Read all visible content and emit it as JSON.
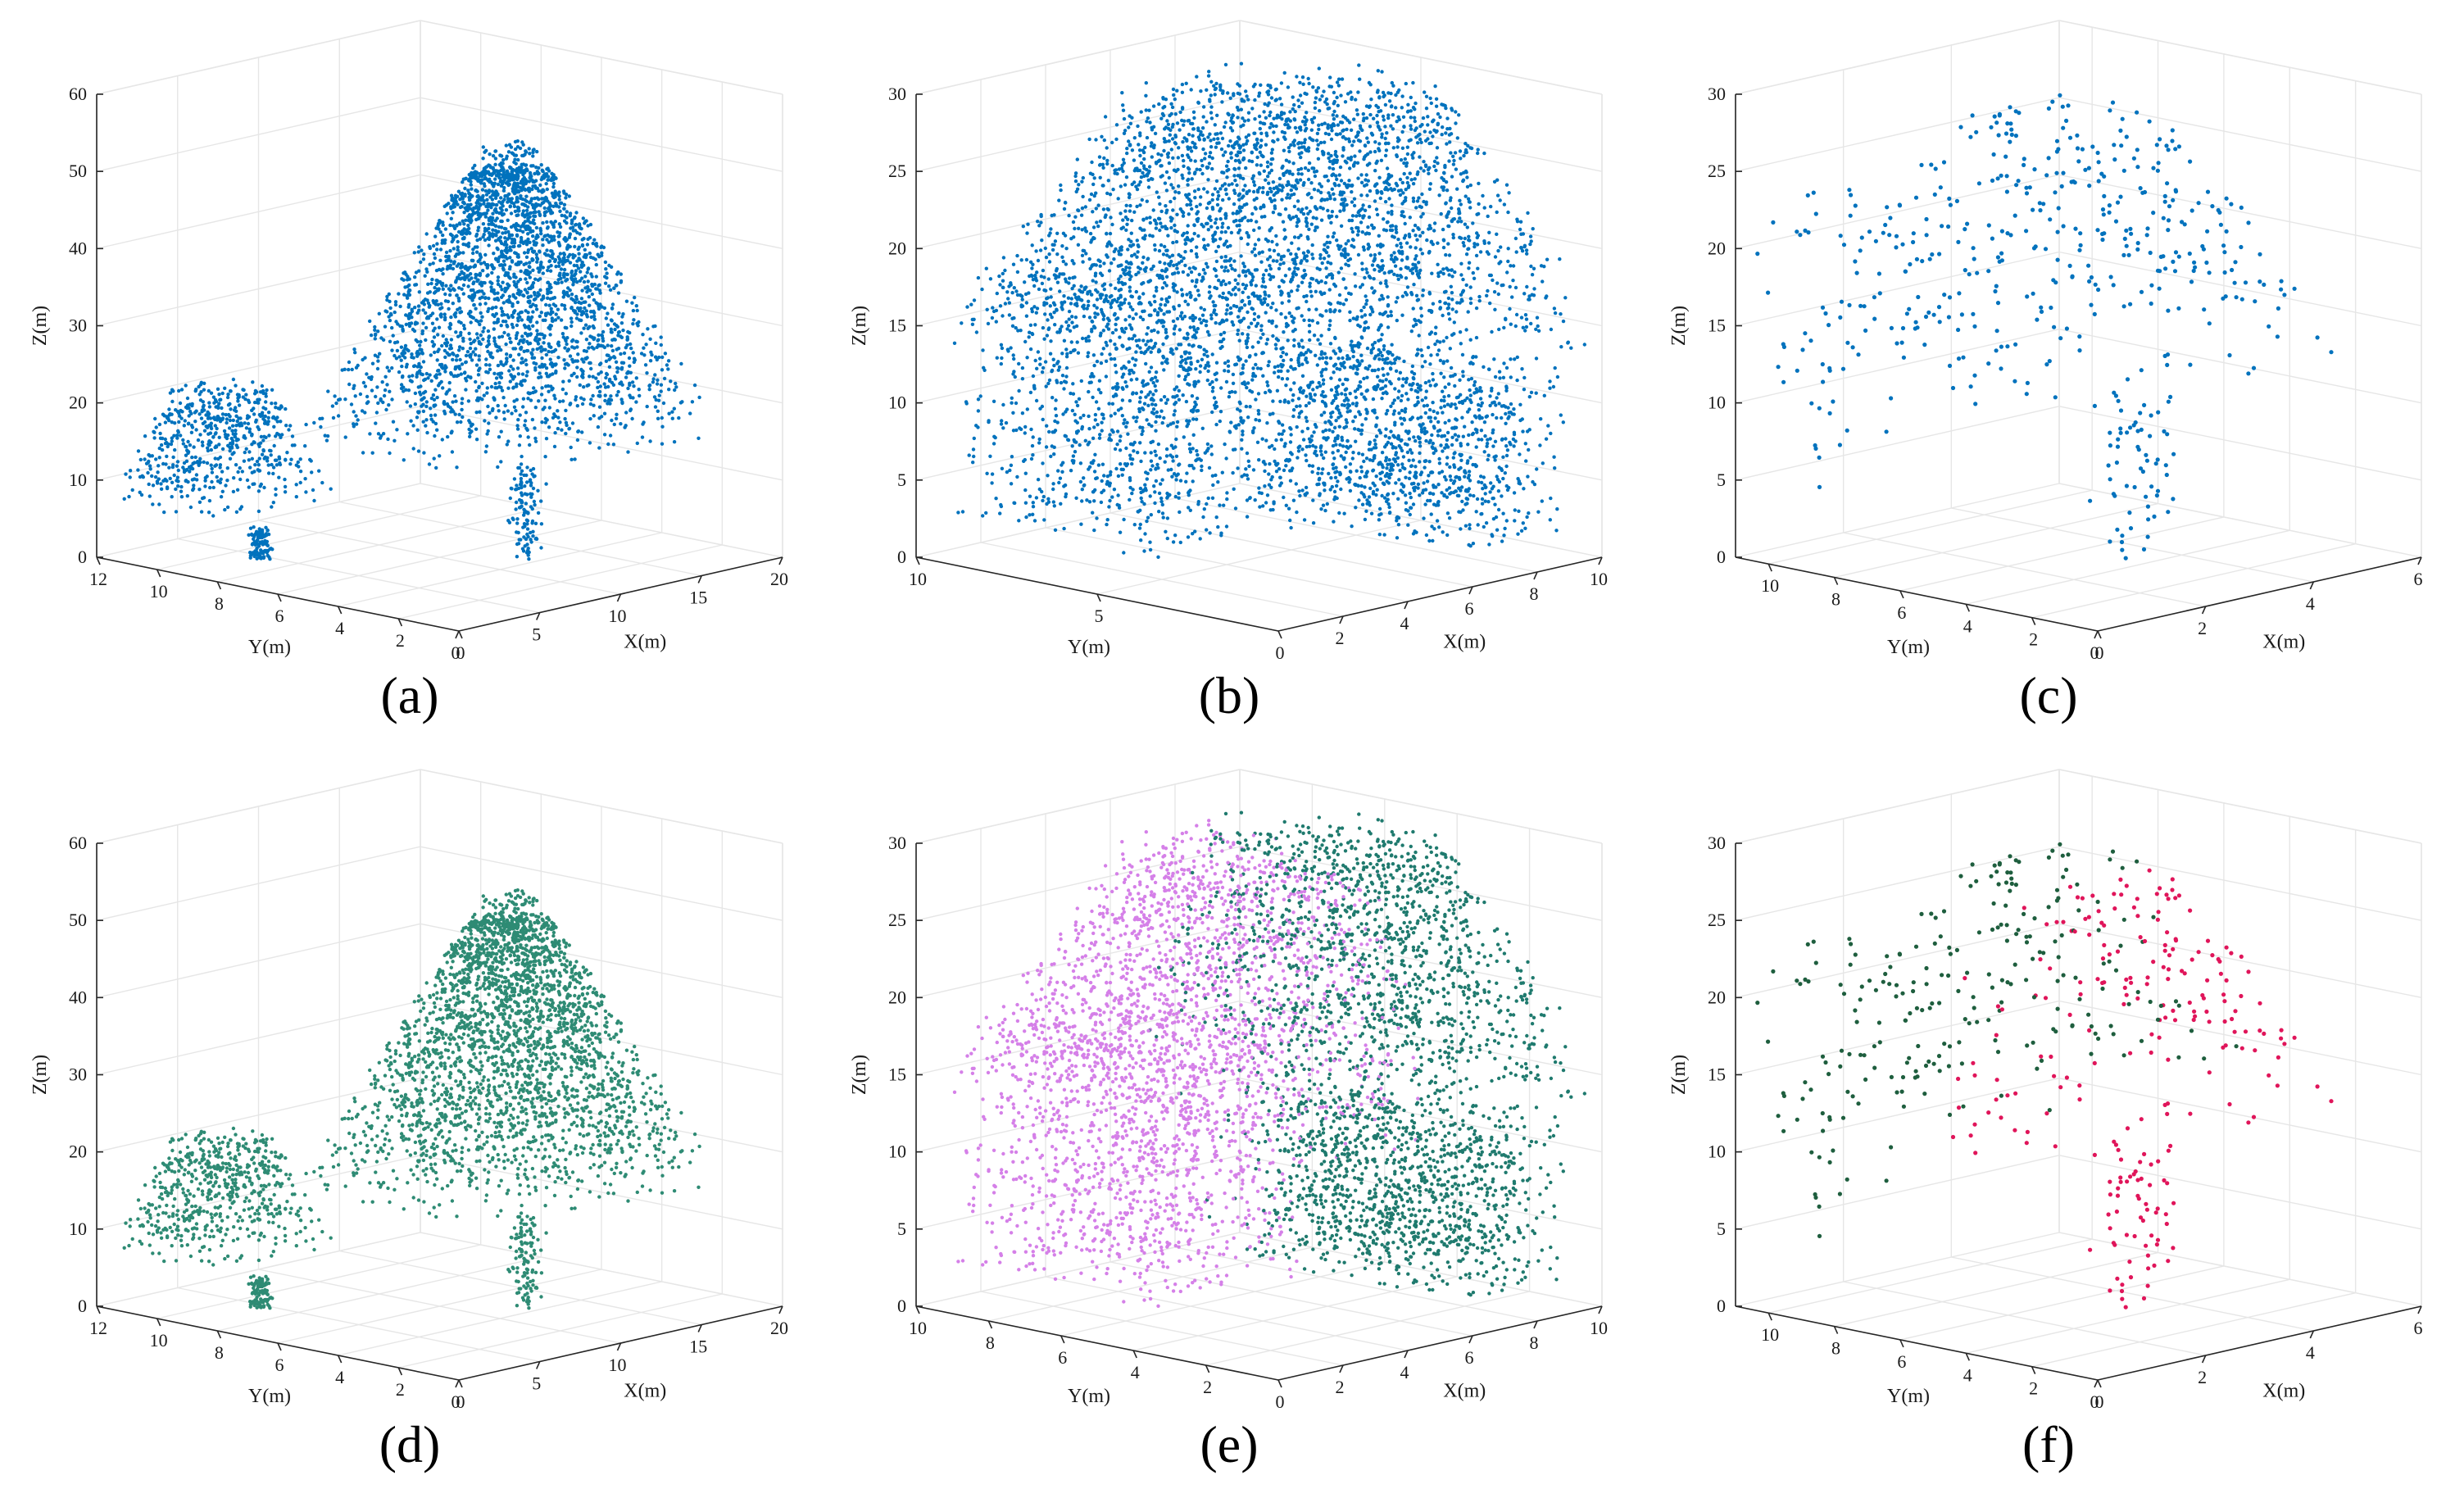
{
  "chart_data": [
    {
      "id": "a",
      "panel_label": "(a)",
      "type": "scatter",
      "tree": "single",
      "xlabel": "X(m)",
      "ylabel": "Y(m)",
      "zlabel": "Z(m)",
      "xlim": [
        0,
        20
      ],
      "ylim": [
        0,
        12
      ],
      "zlim": [
        0,
        60
      ],
      "xticks": [
        0,
        5,
        10,
        15,
        20
      ],
      "yticks": [
        0,
        2,
        4,
        6,
        8,
        10,
        12
      ],
      "zticks": [
        0,
        10,
        20,
        30,
        40,
        50,
        60
      ],
      "grid": true,
      "marker_size": 2.2,
      "series": [
        {
          "color": "#0072BD",
          "point_count": 3600,
          "seed": 11
        }
      ]
    },
    {
      "id": "b",
      "panel_label": "(b)",
      "type": "scatter",
      "tree": "broad",
      "xlabel": "X(m)",
      "ylabel": "Y(m)",
      "zlabel": "Z(m)",
      "xlim": [
        0,
        10
      ],
      "ylim": [
        0,
        10
      ],
      "zlim": [
        0,
        30
      ],
      "xticks": [
        2,
        4,
        6,
        8,
        10
      ],
      "yticks": [
        0,
        5,
        10
      ],
      "zticks": [
        0,
        5,
        10,
        15,
        20,
        25,
        30
      ],
      "grid": true,
      "marker_size": 2.2,
      "series": [
        {
          "color": "#0072BD",
          "point_count": 5200,
          "seed": 22
        }
      ]
    },
    {
      "id": "c",
      "panel_label": "(c)",
      "type": "scatter",
      "tree": "sparse",
      "xlabel": "X(m)",
      "ylabel": "Y(m)",
      "zlabel": "Z(m)",
      "xlim": [
        0,
        6
      ],
      "ylim": [
        0,
        11
      ],
      "zlim": [
        0,
        30
      ],
      "xticks": [
        0,
        2,
        4,
        6
      ],
      "yticks": [
        0,
        2,
        4,
        6,
        8,
        10
      ],
      "zticks": [
        0,
        5,
        10,
        15,
        20,
        25,
        30
      ],
      "grid": true,
      "marker_size": 2.6,
      "series": [
        {
          "color": "#0072BD",
          "point_count": 480,
          "seed": 33
        }
      ]
    },
    {
      "id": "d",
      "panel_label": "(d)",
      "type": "scatter",
      "tree": "single",
      "xlabel": "X(m)",
      "ylabel": "Y(m)",
      "zlabel": "Z(m)",
      "xlim": [
        0,
        20
      ],
      "ylim": [
        0,
        12
      ],
      "zlim": [
        0,
        60
      ],
      "xticks": [
        0,
        5,
        10,
        15,
        20
      ],
      "yticks": [
        0,
        2,
        4,
        6,
        8,
        10,
        12
      ],
      "zticks": [
        0,
        10,
        20,
        30,
        40,
        50,
        60
      ],
      "grid": true,
      "marker_size": 2.2,
      "series": [
        {
          "color": "#2E8B74",
          "point_count": 3600,
          "seed": 11
        }
      ]
    },
    {
      "id": "e",
      "panel_label": "(e)",
      "type": "scatter",
      "tree": "broad",
      "xlabel": "X(m)",
      "ylabel": "Y(m)",
      "zlabel": "Z(m)",
      "xlim": [
        0,
        10
      ],
      "ylim": [
        0,
        10
      ],
      "zlim": [
        0,
        30
      ],
      "xticks": [
        2,
        4,
        6,
        8,
        10
      ],
      "yticks": [
        0,
        2,
        4,
        6,
        8,
        10
      ],
      "zticks": [
        0,
        5,
        10,
        15,
        20,
        25,
        30
      ],
      "grid": true,
      "marker_size": 2.2,
      "series": [
        {
          "color": "#D580E8",
          "region": "left",
          "point_count": 5200,
          "seed": 22
        },
        {
          "color": "#1F7A6E",
          "region": "right",
          "point_count": 5200,
          "seed": 22
        }
      ]
    },
    {
      "id": "f",
      "panel_label": "(f)",
      "type": "scatter",
      "tree": "sparse",
      "xlabel": "X(m)",
      "ylabel": "Y(m)",
      "zlabel": "Z(m)",
      "xlim": [
        0,
        6
      ],
      "ylim": [
        0,
        11
      ],
      "zlim": [
        0,
        30
      ],
      "xticks": [
        0,
        2,
        4,
        6
      ],
      "yticks": [
        0,
        2,
        4,
        6,
        8,
        10
      ],
      "zticks": [
        0,
        5,
        10,
        15,
        20,
        25,
        30
      ],
      "grid": true,
      "marker_size": 2.6,
      "series": [
        {
          "color": "#1E5E3E",
          "region": "left",
          "point_count": 480,
          "seed": 33
        },
        {
          "color": "#E0155A",
          "region": "right",
          "point_count": 480,
          "seed": 33
        }
      ]
    }
  ]
}
